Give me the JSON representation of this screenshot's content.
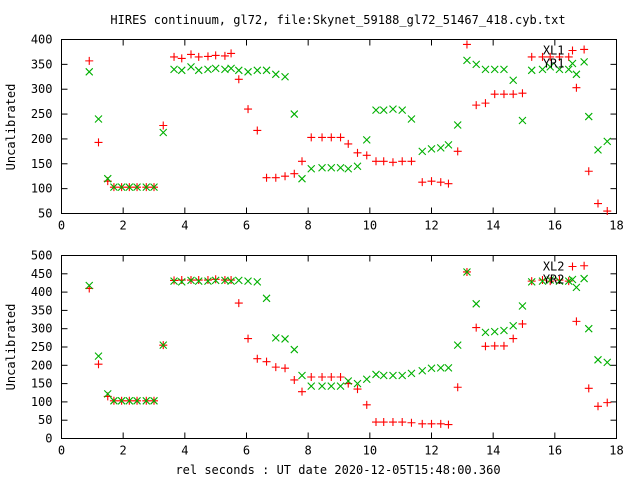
{
  "title": "HIRES continuum, gl72, file:Skynet_59188_gl72_51467_418.cyb.txt",
  "xlabel": "rel seconds : UT date 2020-12-05T15:48:00.360",
  "colors": {
    "red": "#ff0000",
    "green": "#00b000"
  },
  "chart_data": [
    {
      "type": "scatter",
      "ylabel": "Uncalibrated",
      "xlim": [
        0,
        18
      ],
      "ylim": [
        50,
        400
      ],
      "xticks": [
        0,
        2,
        4,
        6,
        8,
        10,
        12,
        14,
        16,
        18
      ],
      "yticks": [
        50,
        100,
        150,
        200,
        250,
        300,
        350,
        400
      ],
      "legend_position": "top-right",
      "series": [
        {
          "name": "XL1",
          "marker": "plus",
          "color": "#ff0000",
          "points": [
            [
              0.9,
              357
            ],
            [
              1.2,
              193
            ],
            [
              1.5,
              115
            ],
            [
              1.7,
              103
            ],
            [
              1.95,
              103
            ],
            [
              2.2,
              103
            ],
            [
              2.45,
              103
            ],
            [
              2.75,
              103
            ],
            [
              3.0,
              103
            ],
            [
              3.3,
              227
            ],
            [
              3.65,
              365
            ],
            [
              3.9,
              362
            ],
            [
              4.2,
              370
            ],
            [
              4.45,
              365
            ],
            [
              4.75,
              366
            ],
            [
              5.0,
              368
            ],
            [
              5.3,
              367
            ],
            [
              5.5,
              372
            ],
            [
              5.75,
              320
            ],
            [
              6.05,
              260
            ],
            [
              6.35,
              217
            ],
            [
              6.65,
              122
            ],
            [
              6.95,
              122
            ],
            [
              7.25,
              125
            ],
            [
              7.55,
              130
            ],
            [
              7.8,
              155
            ],
            [
              8.1,
              203
            ],
            [
              8.45,
              203
            ],
            [
              8.75,
              203
            ],
            [
              9.05,
              203
            ],
            [
              9.3,
              190
            ],
            [
              9.6,
              172
            ],
            [
              9.9,
              167
            ],
            [
              10.2,
              155
            ],
            [
              10.45,
              155
            ],
            [
              10.75,
              153
            ],
            [
              11.05,
              155
            ],
            [
              11.35,
              155
            ],
            [
              11.7,
              113
            ],
            [
              12.0,
              115
            ],
            [
              12.3,
              113
            ],
            [
              12.55,
              110
            ],
            [
              12.85,
              175
            ],
            [
              13.15,
              390
            ],
            [
              13.45,
              268
            ],
            [
              13.75,
              272
            ],
            [
              14.05,
              290
            ],
            [
              14.35,
              290
            ],
            [
              14.65,
              290
            ],
            [
              14.95,
              292
            ],
            [
              15.25,
              365
            ],
            [
              15.6,
              365
            ],
            [
              15.85,
              365
            ],
            [
              16.15,
              365
            ],
            [
              16.45,
              365
            ],
            [
              16.7,
              303
            ],
            [
              16.95,
              380
            ],
            [
              17.1,
              135
            ],
            [
              17.4,
              70
            ],
            [
              17.7,
              55
            ]
          ]
        },
        {
          "name": "YR1",
          "marker": "cross",
          "color": "#00b000",
          "points": [
            [
              0.9,
              335
            ],
            [
              1.2,
              240
            ],
            [
              1.5,
              120
            ],
            [
              1.7,
              103
            ],
            [
              1.95,
              103
            ],
            [
              2.2,
              103
            ],
            [
              2.45,
              103
            ],
            [
              2.75,
              103
            ],
            [
              3.0,
              103
            ],
            [
              3.3,
              213
            ],
            [
              3.65,
              340
            ],
            [
              3.9,
              338
            ],
            [
              4.2,
              345
            ],
            [
              4.45,
              338
            ],
            [
              4.75,
              340
            ],
            [
              5.0,
              342
            ],
            [
              5.3,
              340
            ],
            [
              5.5,
              342
            ],
            [
              5.75,
              338
            ],
            [
              6.05,
              335
            ],
            [
              6.35,
              338
            ],
            [
              6.65,
              338
            ],
            [
              6.95,
              330
            ],
            [
              7.25,
              325
            ],
            [
              7.55,
              250
            ],
            [
              7.8,
              120
            ],
            [
              8.1,
              140
            ],
            [
              8.45,
              142
            ],
            [
              8.75,
              142
            ],
            [
              9.05,
              142
            ],
            [
              9.3,
              140
            ],
            [
              9.6,
              145
            ],
            [
              9.9,
              198
            ],
            [
              10.2,
              258
            ],
            [
              10.45,
              258
            ],
            [
              10.75,
              260
            ],
            [
              11.05,
              258
            ],
            [
              11.35,
              240
            ],
            [
              11.7,
              175
            ],
            [
              12.0,
              180
            ],
            [
              12.3,
              182
            ],
            [
              12.55,
              188
            ],
            [
              12.85,
              228
            ],
            [
              13.15,
              358
            ],
            [
              13.45,
              350
            ],
            [
              13.75,
              340
            ],
            [
              14.05,
              340
            ],
            [
              14.35,
              340
            ],
            [
              14.65,
              318
            ],
            [
              14.95,
              237
            ],
            [
              15.25,
              338
            ],
            [
              15.6,
              340
            ],
            [
              15.85,
              345
            ],
            [
              16.15,
              340
            ],
            [
              16.45,
              340
            ],
            [
              16.7,
              330
            ],
            [
              16.95,
              355
            ],
            [
              17.1,
              245
            ],
            [
              17.4,
              178
            ],
            [
              17.7,
              195
            ]
          ]
        }
      ]
    },
    {
      "type": "scatter",
      "ylabel": "Uncalibrated",
      "xlim": [
        0,
        18
      ],
      "ylim": [
        0,
        500
      ],
      "xticks": [
        0,
        2,
        4,
        6,
        8,
        10,
        12,
        14,
        16,
        18
      ],
      "yticks": [
        0,
        50,
        100,
        150,
        200,
        250,
        300,
        350,
        400,
        450,
        500
      ],
      "legend_position": "top-right",
      "series": [
        {
          "name": "XL2",
          "marker": "plus",
          "color": "#ff0000",
          "points": [
            [
              0.9,
              410
            ],
            [
              1.2,
              203
            ],
            [
              1.5,
              115
            ],
            [
              1.7,
              103
            ],
            [
              1.95,
              103
            ],
            [
              2.2,
              103
            ],
            [
              2.45,
              103
            ],
            [
              2.75,
              103
            ],
            [
              3.0,
              103
            ],
            [
              3.3,
              255
            ],
            [
              3.65,
              432
            ],
            [
              3.9,
              433
            ],
            [
              4.2,
              433
            ],
            [
              4.45,
              433
            ],
            [
              4.75,
              433
            ],
            [
              5.0,
              435
            ],
            [
              5.3,
              433
            ],
            [
              5.5,
              433
            ],
            [
              5.75,
              370
            ],
            [
              6.05,
              273
            ],
            [
              6.35,
              218
            ],
            [
              6.65,
              210
            ],
            [
              6.95,
              195
            ],
            [
              7.25,
              192
            ],
            [
              7.55,
              160
            ],
            [
              7.8,
              128
            ],
            [
              8.1,
              168
            ],
            [
              8.45,
              168
            ],
            [
              8.75,
              168
            ],
            [
              9.05,
              168
            ],
            [
              9.3,
              150
            ],
            [
              9.6,
              135
            ],
            [
              9.9,
              92
            ],
            [
              10.2,
              45
            ],
            [
              10.45,
              45
            ],
            [
              10.75,
              45
            ],
            [
              11.05,
              45
            ],
            [
              11.35,
              43
            ],
            [
              11.7,
              40
            ],
            [
              12.0,
              40
            ],
            [
              12.3,
              40
            ],
            [
              12.55,
              38
            ],
            [
              12.85,
              140
            ],
            [
              13.15,
              455
            ],
            [
              13.45,
              303
            ],
            [
              13.75,
              252
            ],
            [
              14.05,
              253
            ],
            [
              14.35,
              253
            ],
            [
              14.65,
              273
            ],
            [
              14.95,
              313
            ],
            [
              15.25,
              430
            ],
            [
              15.6,
              433
            ],
            [
              15.85,
              430
            ],
            [
              16.15,
              433
            ],
            [
              16.45,
              430
            ],
            [
              16.7,
              320
            ],
            [
              16.95,
              472
            ],
            [
              17.1,
              137
            ],
            [
              17.4,
              88
            ],
            [
              17.7,
              98
            ]
          ]
        },
        {
          "name": "YR2",
          "marker": "cross",
          "color": "#00b000",
          "points": [
            [
              0.9,
              418
            ],
            [
              1.2,
              225
            ],
            [
              1.5,
              122
            ],
            [
              1.7,
              103
            ],
            [
              1.95,
              103
            ],
            [
              2.2,
              103
            ],
            [
              2.45,
              103
            ],
            [
              2.75,
              103
            ],
            [
              3.0,
              103
            ],
            [
              3.3,
              255
            ],
            [
              3.65,
              430
            ],
            [
              3.9,
              428
            ],
            [
              4.2,
              432
            ],
            [
              4.45,
              430
            ],
            [
              4.75,
              430
            ],
            [
              5.0,
              432
            ],
            [
              5.3,
              432
            ],
            [
              5.5,
              430
            ],
            [
              5.75,
              432
            ],
            [
              6.05,
              430
            ],
            [
              6.35,
              428
            ],
            [
              6.65,
              383
            ],
            [
              6.95,
              275
            ],
            [
              7.25,
              272
            ],
            [
              7.55,
              243
            ],
            [
              7.8,
              172
            ],
            [
              8.1,
              143
            ],
            [
              8.45,
              143
            ],
            [
              8.75,
              143
            ],
            [
              9.05,
              143
            ],
            [
              9.3,
              157
            ],
            [
              9.6,
              150
            ],
            [
              9.9,
              162
            ],
            [
              10.2,
              175
            ],
            [
              10.45,
              172
            ],
            [
              10.75,
              172
            ],
            [
              11.05,
              172
            ],
            [
              11.35,
              178
            ],
            [
              11.7,
              185
            ],
            [
              12.0,
              192
            ],
            [
              12.3,
              193
            ],
            [
              12.55,
              193
            ],
            [
              12.85,
              255
            ],
            [
              13.15,
              455
            ],
            [
              13.45,
              368
            ],
            [
              13.75,
              290
            ],
            [
              14.05,
              292
            ],
            [
              14.35,
              295
            ],
            [
              14.65,
              308
            ],
            [
              14.95,
              362
            ],
            [
              15.25,
              428
            ],
            [
              15.6,
              430
            ],
            [
              15.85,
              433
            ],
            [
              16.15,
              430
            ],
            [
              16.45,
              430
            ],
            [
              16.7,
              413
            ],
            [
              16.95,
              437
            ],
            [
              17.1,
              300
            ],
            [
              17.4,
              215
            ],
            [
              17.7,
              208
            ]
          ]
        }
      ]
    }
  ]
}
